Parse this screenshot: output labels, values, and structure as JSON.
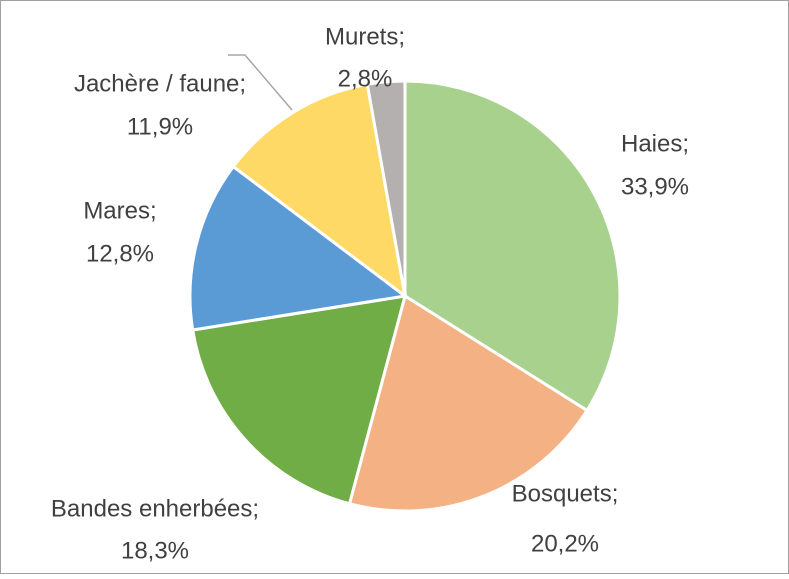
{
  "chart_data": {
    "type": "pie",
    "categories": [
      "Haies;",
      "Bosquets;",
      "Bandes enherbées;",
      "Mares;",
      "Jachère / faune;",
      "Murets;"
    ],
    "values": [
      33.9,
      20.2,
      18.3,
      12.8,
      11.9,
      2.8
    ],
    "value_labels": [
      "33,9%",
      "20,2%",
      "18,3%",
      "12,8%",
      "11,9%",
      "2,8%"
    ],
    "colors": [
      "#a9d18e",
      "#f4b183",
      "#70ad47",
      "#5b9bd5",
      "#ffd966",
      "#b4b0b0"
    ]
  }
}
